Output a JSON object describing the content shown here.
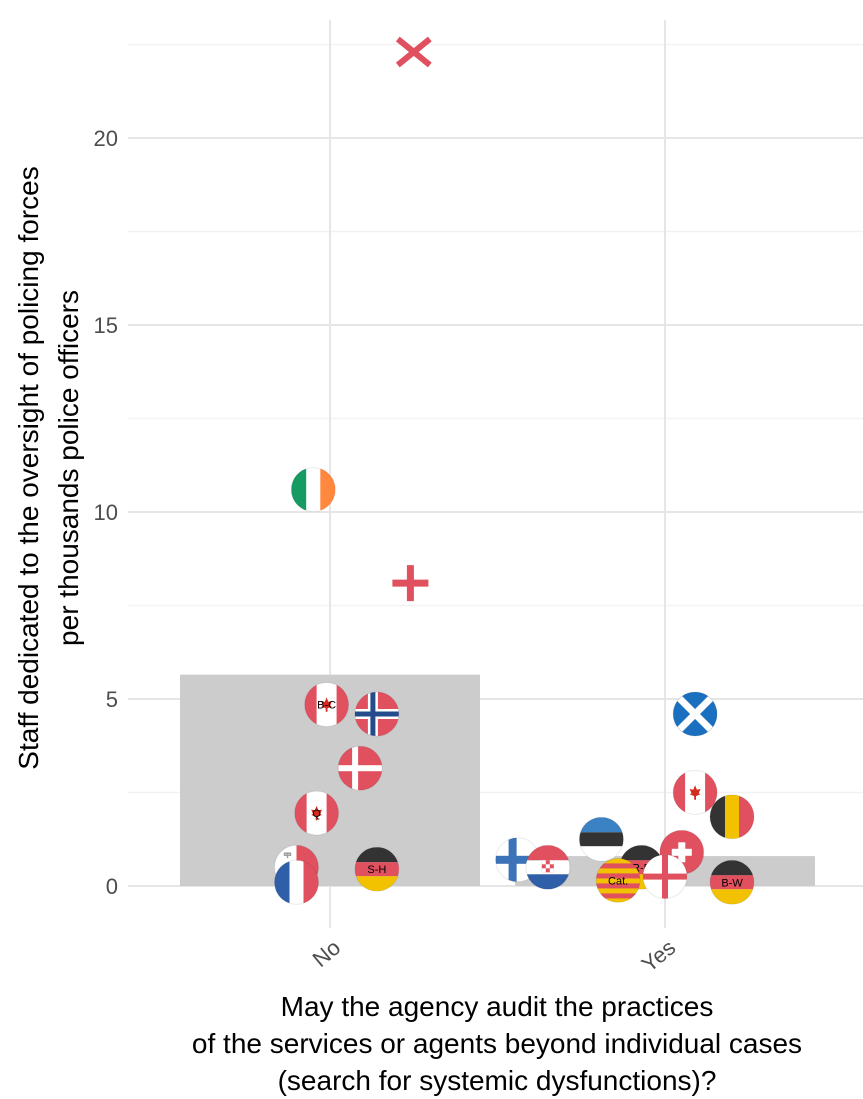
{
  "chart_data": {
    "type": "bar",
    "categories": [
      "No",
      "Yes"
    ],
    "values": [
      5.65,
      0.8
    ],
    "ylim": [
      -1.2,
      23
    ],
    "yticks": [
      0,
      5,
      10,
      15,
      20
    ],
    "grid": true,
    "ylabel_lines": [
      "Staff dedicated to the oversight of policing forces",
      "per thousands police officers"
    ],
    "xlabel_lines": [
      "May the agency audit the practices",
      "of the services or agents beyond individual cases",
      "(search for systemic dysfunctions)?"
    ],
    "bar_color": "#cccccd",
    "points": [
      {
        "category": "No",
        "offset": 0.25,
        "y": 22.3,
        "marker": "cross-x",
        "color": "#e0505f"
      },
      {
        "category": "No",
        "offset": -0.05,
        "y": 10.6,
        "marker": "flag-ireland"
      },
      {
        "category": "No",
        "offset": 0.24,
        "y": 8.1,
        "marker": "plus",
        "color": "#e0505f"
      },
      {
        "category": "No",
        "offset": -0.01,
        "y": 4.85,
        "marker": "flag-canada",
        "label": "B-C"
      },
      {
        "category": "No",
        "offset": 0.14,
        "y": 4.6,
        "marker": "flag-norway"
      },
      {
        "category": "No",
        "offset": 0.09,
        "y": 3.15,
        "marker": "flag-denmark"
      },
      {
        "category": "No",
        "offset": -0.04,
        "y": 1.95,
        "marker": "flag-canada",
        "label": "Q"
      },
      {
        "category": "No",
        "offset": -0.1,
        "y": 0.5,
        "marker": "flag-malta"
      },
      {
        "category": "No",
        "offset": -0.1,
        "y": 0.1,
        "marker": "flag-france"
      },
      {
        "category": "No",
        "offset": 0.14,
        "y": 0.45,
        "marker": "flag-germany",
        "label": "S-H"
      },
      {
        "category": "Yes",
        "offset": 0.09,
        "y": 4.6,
        "marker": "flag-scotland"
      },
      {
        "category": "Yes",
        "offset": 0.09,
        "y": 2.5,
        "marker": "flag-canada"
      },
      {
        "category": "Yes",
        "offset": 0.2,
        "y": 1.85,
        "marker": "flag-belgium"
      },
      {
        "category": "Yes",
        "offset": -0.19,
        "y": 1.25,
        "marker": "flag-estonia"
      },
      {
        "category": "Yes",
        "offset": -0.44,
        "y": 0.7,
        "marker": "flag-finland"
      },
      {
        "category": "Yes",
        "offset": -0.35,
        "y": 0.5,
        "marker": "flag-croatia"
      },
      {
        "category": "Yes",
        "offset": -0.07,
        "y": 0.5,
        "marker": "flag-germany",
        "label": "R-P"
      },
      {
        "category": "Yes",
        "offset": 0.05,
        "y": 0.9,
        "marker": "flag-switzerland"
      },
      {
        "category": "Yes",
        "offset": 0.0,
        "y": 0.25,
        "marker": "flag-england"
      },
      {
        "category": "Yes",
        "offset": -0.14,
        "y": 0.15,
        "marker": "flag-catalonia",
        "label": "Cat."
      },
      {
        "category": "Yes",
        "offset": 0.2,
        "y": 0.1,
        "marker": "flag-germany",
        "label": "B-W"
      }
    ]
  }
}
